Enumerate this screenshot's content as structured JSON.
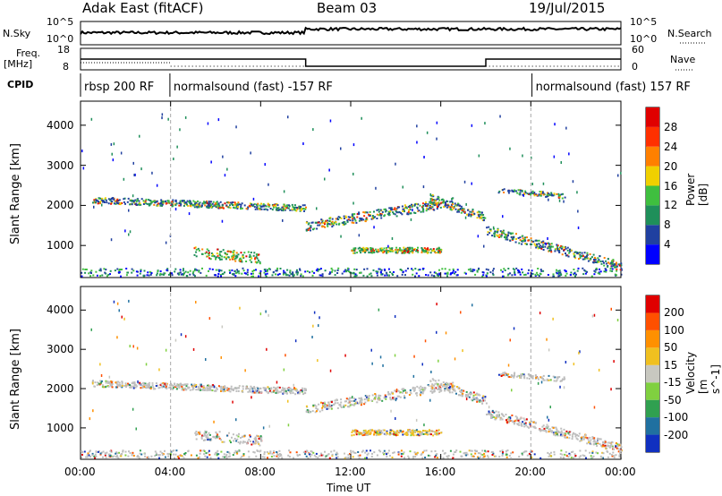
{
  "header": {
    "station": "Adak East (fitACF)",
    "beam": "Beam 03",
    "date": "19/Jul/2015"
  },
  "labels": {
    "nsky": "N.Sky",
    "nsearch": "N.Search",
    "freq_line1": "Freq.",
    "freq_line2": "[MHz]",
    "nave": "Nave",
    "cpid": "CPID",
    "nsky_top": "10^5",
    "nsky_bot": "10^0",
    "freq_top": "18",
    "freq_bot": "8",
    "nave_top": "60",
    "nave_bot": "0"
  },
  "cpid_segments": [
    {
      "start_hr": 0,
      "end_hr": 3.97,
      "text": "rbsp 200 RF"
    },
    {
      "start_hr": 3.97,
      "end_hr": 20.05,
      "text": "normalsound (fast) -157 RF"
    },
    {
      "start_hr": 20.05,
      "end_hr": 24,
      "text": "normalsound (fast) 157 RF"
    }
  ],
  "chart_data": [
    {
      "type": "heatmap",
      "name": "Power",
      "xlabel": "",
      "ylabel": "Slant Range [km]",
      "xlim": [
        0,
        24
      ],
      "ylim": [
        200,
        4600
      ],
      "yticks": [
        1000,
        2000,
        3000,
        4000
      ],
      "colorbar_label": "Power [dB]",
      "colorbar_ticks": [
        "4",
        "8",
        "12",
        "16",
        "20",
        "24",
        "28"
      ],
      "colorbar_colors": [
        "#0000ff",
        "#2040a0",
        "#1f8f5a",
        "#3fbf3f",
        "#f0d000",
        "#ff8000",
        "#ff3000",
        "#e00000"
      ]
    },
    {
      "type": "heatmap",
      "name": "Velocity",
      "xlabel": "Time UT",
      "ylabel": "Slant Range [km]",
      "xlim": [
        0,
        24
      ],
      "ylim": [
        200,
        4600
      ],
      "xticks": [
        "00:00",
        "04:00",
        "08:00",
        "12:00",
        "16:00",
        "20:00",
        "00:00"
      ],
      "yticks": [
        1000,
        2000,
        3000,
        4000
      ],
      "colorbar_label": "Velocity [m s^-1]",
      "colorbar_ticks": [
        "200",
        "100",
        "50",
        "15",
        "-15",
        "-50",
        "-100",
        "-200"
      ],
      "colorbar_colors": [
        "#1030c0",
        "#2070a0",
        "#30a050",
        "#80d040",
        "#c8c8c0",
        "#f0c020",
        "#ff9000",
        "#ff5000",
        "#e00000"
      ]
    }
  ],
  "colors": {
    "ground_scatter": "#bebebe",
    "dashed_line": "#aaaaaa"
  }
}
